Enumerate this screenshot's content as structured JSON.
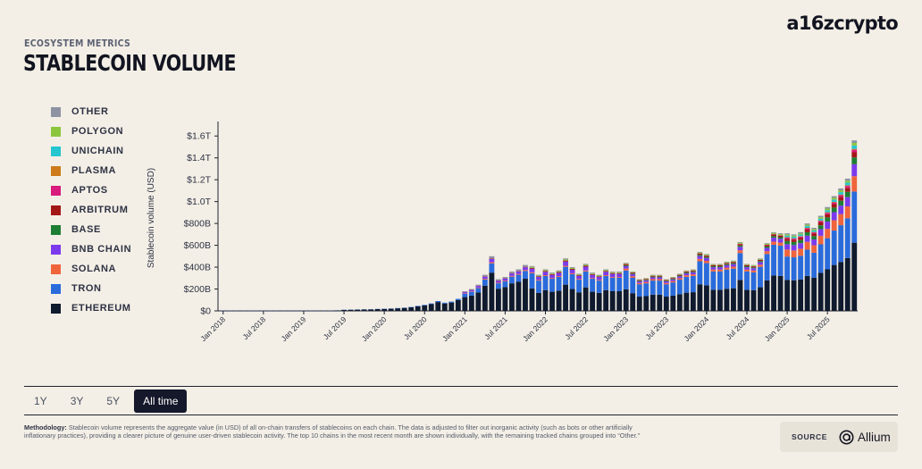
{
  "header": {
    "eyebrow": "ECOSYSTEM METRICS",
    "title": "STABLECOIN VOLUME",
    "brand": "a16zcrypto"
  },
  "legend": [
    {
      "label": "OTHER",
      "color": "#8e93a3"
    },
    {
      "label": "POLYGON",
      "color": "#8cc63f"
    },
    {
      "label": "UNICHAIN",
      "color": "#26c6d0"
    },
    {
      "label": "PLASMA",
      "color": "#cc7a1a"
    },
    {
      "label": "APTOS",
      "color": "#d81b7c"
    },
    {
      "label": "ARBITRUM",
      "color": "#a31717"
    },
    {
      "label": "BASE",
      "color": "#1e7e34"
    },
    {
      "label": "BNB CHAIN",
      "color": "#7c3aed"
    },
    {
      "label": "SOLANA",
      "color": "#f0643c"
    },
    {
      "label": "TRON",
      "color": "#2a6bdc"
    },
    {
      "label": "ETHEREUM",
      "color": "#0f1a2e"
    }
  ],
  "chart_data": {
    "type": "bar",
    "stacked": true,
    "ylabel": "Stablecoin volume (USD)",
    "ylim": [
      0,
      1.7
    ],
    "unit": "trillion USD",
    "yticks": [
      {
        "value": 0,
        "label": "$0"
      },
      {
        "value": 0.2,
        "label": "$200B"
      },
      {
        "value": 0.4,
        "label": "$400B"
      },
      {
        "value": 0.6,
        "label": "$600B"
      },
      {
        "value": 0.8,
        "label": "$800B"
      },
      {
        "value": 1.0,
        "label": "$1.0T"
      },
      {
        "value": 1.2,
        "label": "$1.2T"
      },
      {
        "value": 1.4,
        "label": "$1.4T"
      },
      {
        "value": 1.6,
        "label": "$1.6T"
      }
    ],
    "x_start": "Jan 2018",
    "xticks": [
      {
        "index": 0,
        "label": "Jan 2018"
      },
      {
        "index": 6,
        "label": "Jul 2018"
      },
      {
        "index": 12,
        "label": "Jan 2019"
      },
      {
        "index": 18,
        "label": "Jul 2019"
      },
      {
        "index": 24,
        "label": "Jan 2020"
      },
      {
        "index": 30,
        "label": "Jul 2020"
      },
      {
        "index": 36,
        "label": "Jan 2021"
      },
      {
        "index": 42,
        "label": "Jul 2021"
      },
      {
        "index": 48,
        "label": "Jan 2022"
      },
      {
        "index": 54,
        "label": "Jul 2022"
      },
      {
        "index": 60,
        "label": "Jan 2023"
      },
      {
        "index": 66,
        "label": "Jul 2023"
      },
      {
        "index": 72,
        "label": "Jan 2024"
      },
      {
        "index": 78,
        "label": "Jul 2024"
      },
      {
        "index": 84,
        "label": "Jan 2025"
      },
      {
        "index": 90,
        "label": "Jul 2025"
      }
    ],
    "series_order": [
      "ETHEREUM",
      "TRON",
      "SOLANA",
      "BNB CHAIN",
      "BASE",
      "ARBITRUM",
      "APTOS",
      "PLASMA",
      "UNICHAIN",
      "POLYGON",
      "OTHER"
    ],
    "totals": [
      0.002,
      0.002,
      0.002,
      0.002,
      0.002,
      0.002,
      0.002,
      0.002,
      0.002,
      0.003,
      0.003,
      0.003,
      0.003,
      0.003,
      0.003,
      0.004,
      0.004,
      0.005,
      0.01,
      0.012,
      0.013,
      0.014,
      0.015,
      0.018,
      0.02,
      0.022,
      0.026,
      0.03,
      0.036,
      0.046,
      0.055,
      0.068,
      0.09,
      0.075,
      0.085,
      0.11,
      0.18,
      0.2,
      0.24,
      0.33,
      0.5,
      0.29,
      0.31,
      0.36,
      0.38,
      0.42,
      0.41,
      0.33,
      0.38,
      0.35,
      0.37,
      0.48,
      0.4,
      0.34,
      0.43,
      0.35,
      0.33,
      0.38,
      0.36,
      0.36,
      0.44,
      0.36,
      0.29,
      0.3,
      0.33,
      0.33,
      0.29,
      0.31,
      0.34,
      0.37,
      0.38,
      0.54,
      0.52,
      0.43,
      0.43,
      0.45,
      0.46,
      0.63,
      0.43,
      0.42,
      0.48,
      0.62,
      0.72,
      0.71,
      0.71,
      0.7,
      0.72,
      0.8,
      0.76,
      0.87,
      0.95,
      1.05,
      1.12,
      1.21,
      1.56
    ],
    "composition": {
      "2020": {
        "ETHEREUM": 0.9,
        "TRON": 0.1
      },
      "2021_early": {
        "ETHEREUM": 0.7,
        "TRON": 0.17,
        "SOLANA": 0.02,
        "BNB CHAIN": 0.06,
        "ARBITRUM": 0.01,
        "OTHER": 0.04
      },
      "2022": {
        "ETHEREUM": 0.5,
        "TRON": 0.34,
        "SOLANA": 0.02,
        "BNB CHAIN": 0.08,
        "ARBITRUM": 0.02,
        "POLYGON": 0.02,
        "OTHER": 0.02
      },
      "2023_2024": {
        "ETHEREUM": 0.45,
        "TRON": 0.39,
        "SOLANA": 0.04,
        "BNB CHAIN": 0.05,
        "BASE": 0.02,
        "ARBITRUM": 0.02,
        "APTOS": 0.005,
        "POLYGON": 0.015,
        "OTHER": 0.01
      },
      "2025": {
        "ETHEREUM": 0.4,
        "TRON": 0.3,
        "SOLANA": 0.09,
        "BNB CHAIN": 0.07,
        "BASE": 0.04,
        "ARBITRUM": 0.03,
        "APTOS": 0.015,
        "PLASMA": 0.005,
        "UNICHAIN": 0.02,
        "POLYGON": 0.015,
        "OTHER": 0.015
      }
    }
  },
  "time_tabs": [
    {
      "label": "1Y",
      "active": false
    },
    {
      "label": "3Y",
      "active": false
    },
    {
      "label": "5Y",
      "active": false
    },
    {
      "label": "All time",
      "active": true
    }
  ],
  "footer": {
    "method_label": "Methodology:",
    "method_text": " Stablecoin volume represents the aggregate value (in USD) of all on-chain transfers of stablecoins on each chain. The data is adjusted to filter out inorganic activity (such as bots or other artificially inflationary practices), providing a clearer picture of genuine user-driven stablecoin activity. The top 10 chains in the most recent month are shown individually, with the remaining tracked chains grouped into “Other.”",
    "source_label": "SOURCE",
    "source_name": "Allium"
  }
}
